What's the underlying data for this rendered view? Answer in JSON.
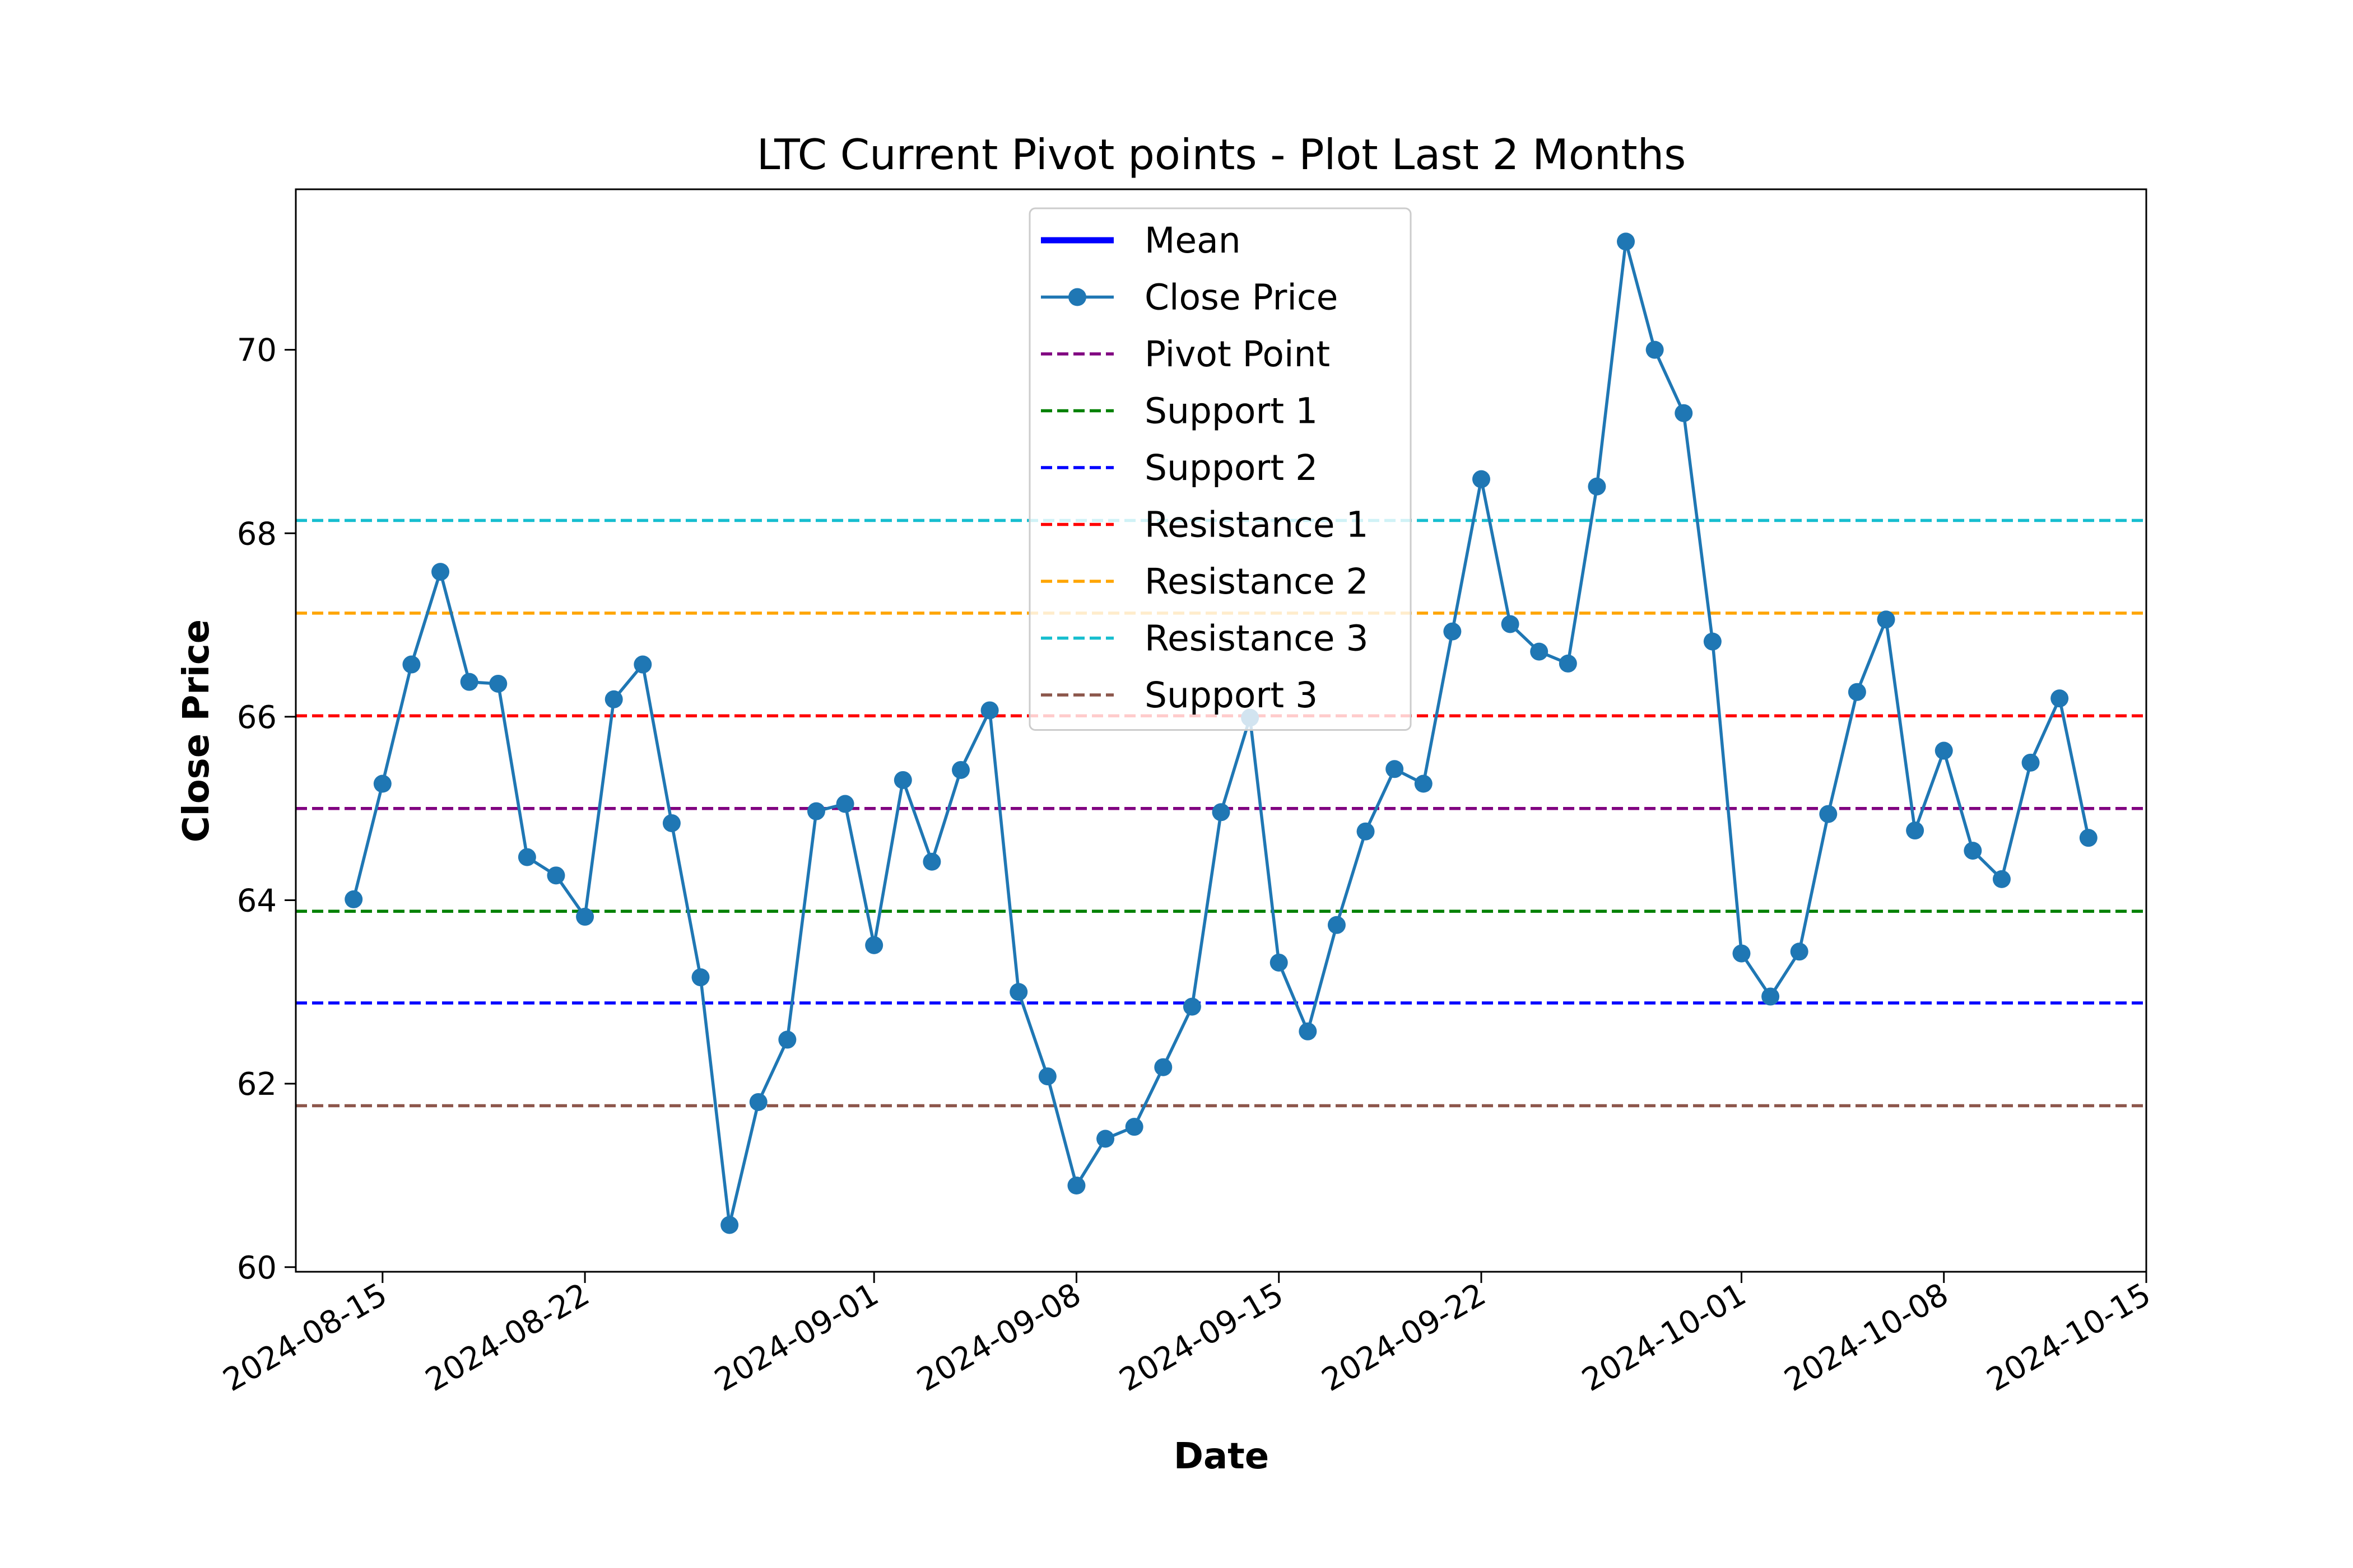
{
  "chart_data": {
    "type": "line",
    "title": "LTC Current Pivot points - Plot Last 2 Months",
    "xlabel": "Date",
    "ylabel": "Close Price",
    "ylim": [
      59.95,
      71.75
    ],
    "xlim": [
      "2024-08-12",
      "2024-10-15"
    ],
    "y_ticks": [
      60,
      62,
      64,
      66,
      68,
      70
    ],
    "y_tick_labels": [
      "60",
      "62",
      "64",
      "66",
      "68",
      "70"
    ],
    "x_ticks": [
      "2024-08-15",
      "2024-08-22",
      "2024-09-01",
      "2024-09-08",
      "2024-09-15",
      "2024-09-22",
      "2024-10-01",
      "2024-10-08",
      "2024-10-15"
    ],
    "x_tick_labels": [
      "2024-08-15",
      "2024-08-22",
      "2024-09-01",
      "2024-09-08",
      "2024-09-15",
      "2024-09-22",
      "2024-10-01",
      "2024-10-08",
      "2024-10-15"
    ],
    "grid": false,
    "legend_position": "upper center",
    "legend": [
      {
        "label": "Mean",
        "style": "solid-thick",
        "color": "#0000ff"
      },
      {
        "label": "Close Price",
        "style": "line-marker",
        "color": "#1f77b4"
      },
      {
        "label": "Pivot Point",
        "style": "dashed",
        "color": "#800080"
      },
      {
        "label": "Support 1",
        "style": "dashed",
        "color": "#008000"
      },
      {
        "label": "Support 2",
        "style": "dashed",
        "color": "#0000ff"
      },
      {
        "label": "Resistance 1",
        "style": "dashed",
        "color": "#ff0000"
      },
      {
        "label": "Resistance 2",
        "style": "dashed",
        "color": "#ffa500"
      },
      {
        "label": "Resistance 3",
        "style": "dashed",
        "color": "#17becf"
      },
      {
        "label": "Support 3",
        "style": "dashed",
        "color": "#8c564b"
      }
    ],
    "reference_lines": [
      {
        "name": "Pivot Point",
        "y": 65.0,
        "color": "#800080"
      },
      {
        "name": "Support 1",
        "y": 63.88,
        "color": "#008000"
      },
      {
        "name": "Support 2",
        "y": 62.88,
        "color": "#0000ff"
      },
      {
        "name": "Resistance 1",
        "y": 66.01,
        "color": "#ff0000"
      },
      {
        "name": "Resistance 2",
        "y": 67.13,
        "color": "#ffa500"
      },
      {
        "name": "Resistance 3",
        "y": 68.14,
        "color": "#17becf"
      },
      {
        "name": "Support 3",
        "y": 61.76,
        "color": "#8c564b"
      }
    ],
    "series": [
      {
        "name": "Close Price",
        "color": "#1f77b4",
        "x": [
          "2024-08-14",
          "2024-08-15",
          "2024-08-16",
          "2024-08-17",
          "2024-08-18",
          "2024-08-19",
          "2024-08-20",
          "2024-08-21",
          "2024-08-22",
          "2024-08-23",
          "2024-08-24",
          "2024-08-25",
          "2024-08-26",
          "2024-08-27",
          "2024-08-28",
          "2024-08-29",
          "2024-08-30",
          "2024-08-31",
          "2024-09-01",
          "2024-09-02",
          "2024-09-03",
          "2024-09-04",
          "2024-09-05",
          "2024-09-06",
          "2024-09-07",
          "2024-09-08",
          "2024-09-09",
          "2024-09-10",
          "2024-09-11",
          "2024-09-12",
          "2024-09-13",
          "2024-09-14",
          "2024-09-15",
          "2024-09-16",
          "2024-09-17",
          "2024-09-18",
          "2024-09-19",
          "2024-09-20",
          "2024-09-21",
          "2024-09-22",
          "2024-09-23",
          "2024-09-24",
          "2024-09-25",
          "2024-09-26",
          "2024-09-27",
          "2024-09-28",
          "2024-09-29",
          "2024-09-30",
          "2024-10-01",
          "2024-10-02",
          "2024-10-03",
          "2024-10-04",
          "2024-10-05",
          "2024-10-06",
          "2024-10-07",
          "2024-10-08",
          "2024-10-09",
          "2024-10-10",
          "2024-10-11",
          "2024-10-12",
          "2024-10-13"
        ],
        "values": [
          64.01,
          65.27,
          66.57,
          67.58,
          66.38,
          66.36,
          64.47,
          64.27,
          63.82,
          66.19,
          66.57,
          64.84,
          63.16,
          60.46,
          61.8,
          62.48,
          64.97,
          65.05,
          63.51,
          65.31,
          64.42,
          65.42,
          66.07,
          63.0,
          62.08,
          60.89,
          61.4,
          61.53,
          62.18,
          62.84,
          64.96,
          65.99,
          63.32,
          62.57,
          63.73,
          64.75,
          65.43,
          65.27,
          66.93,
          68.59,
          67.01,
          66.71,
          66.58,
          68.51,
          71.18,
          70.0,
          69.31,
          66.82,
          63.42,
          62.95,
          63.44,
          64.94,
          66.27,
          67.06,
          64.76,
          65.63,
          64.54,
          64.23,
          65.5,
          66.2,
          64.68
        ]
      }
    ]
  }
}
